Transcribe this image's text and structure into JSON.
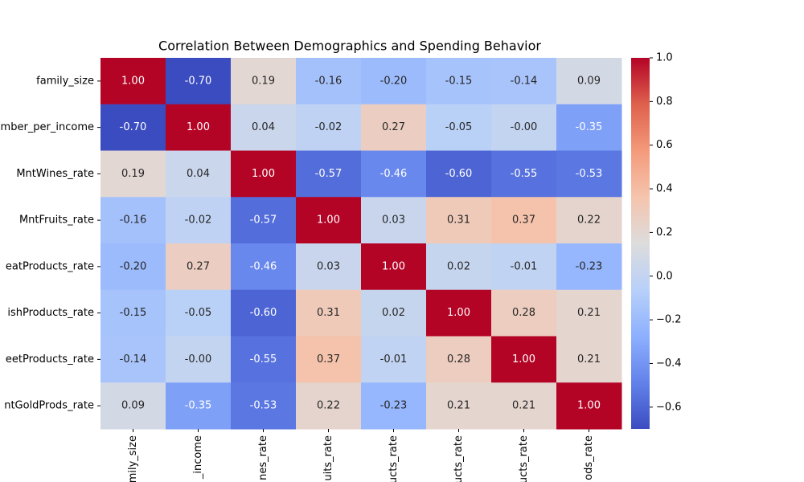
{
  "chart_data": {
    "type": "heatmap",
    "title": "Correlation Between Demographics and Spending Behavior",
    "colormap": "coolwarm",
    "x_labels": [
      "mily_size",
      "_income",
      "nes_rate",
      "uits_rate",
      "ucts_rate",
      "ucts_rate",
      "ucts_rate",
      "ods_rate"
    ],
    "y_labels": [
      "family_size",
      "mber_per_income",
      "MntWines_rate",
      "MntFruits_rate",
      "eatProducts_rate",
      "ishProducts_rate",
      "eetProducts_rate",
      "ntGoldProds_rate"
    ],
    "values": [
      [
        1.0,
        -0.7,
        0.19,
        -0.16,
        -0.2,
        -0.15,
        -0.14,
        0.09
      ],
      [
        -0.7,
        1.0,
        0.04,
        -0.02,
        0.27,
        -0.05,
        0,
        -0.35
      ],
      [
        0.19,
        0.04,
        1.0,
        -0.57,
        -0.46,
        -0.6,
        -0.55,
        -0.53
      ],
      [
        -0.16,
        -0.02,
        -0.57,
        1.0,
        0.03,
        0.31,
        0.37,
        0.22
      ],
      [
        -0.2,
        0.27,
        -0.46,
        0.03,
        1.0,
        0.02,
        -0.01,
        -0.23
      ],
      [
        -0.15,
        -0.05,
        -0.6,
        0.31,
        0.02,
        1.0,
        0.28,
        0.21
      ],
      [
        -0.14,
        0,
        -0.55,
        0.37,
        -0.01,
        0.28,
        1.0,
        0.21
      ],
      [
        0.09,
        -0.35,
        -0.53,
        0.22,
        -0.23,
        0.21,
        0.21,
        1.0
      ]
    ],
    "value_labels": [
      [
        "1.00",
        "-0.70",
        "0.19",
        "-0.16",
        "-0.20",
        "-0.15",
        "-0.14",
        "0.09"
      ],
      [
        "-0.70",
        "1.00",
        "0.04",
        "-0.02",
        "0.27",
        "-0.05",
        "-0.00",
        "-0.35"
      ],
      [
        "0.19",
        "0.04",
        "1.00",
        "-0.57",
        "-0.46",
        "-0.60",
        "-0.55",
        "-0.53"
      ],
      [
        "-0.16",
        "-0.02",
        "-0.57",
        "1.00",
        "0.03",
        "0.31",
        "0.37",
        "0.22"
      ],
      [
        "-0.20",
        "0.27",
        "-0.46",
        "0.03",
        "1.00",
        "0.02",
        "-0.01",
        "-0.23"
      ],
      [
        "-0.15",
        "-0.05",
        "-0.60",
        "0.31",
        "0.02",
        "1.00",
        "0.28",
        "0.21"
      ],
      [
        "-0.14",
        "-0.00",
        "-0.55",
        "0.37",
        "-0.01",
        "0.28",
        "1.00",
        "0.21"
      ],
      [
        "0.09",
        "-0.35",
        "-0.53",
        "0.22",
        "-0.23",
        "0.21",
        "0.21",
        "1.00"
      ]
    ],
    "clim": [
      -0.7,
      1.0
    ],
    "cticks": [
      {
        "value": 1.0,
        "label": "1.0"
      },
      {
        "value": 0.8,
        "label": "0.8"
      },
      {
        "value": 0.6,
        "label": "0.6"
      },
      {
        "value": 0.4,
        "label": "0.4"
      },
      {
        "value": 0.2,
        "label": "0.2"
      },
      {
        "value": 0.0,
        "label": "0.0"
      },
      {
        "value": -0.2,
        "label": "−0.2"
      },
      {
        "value": -0.4,
        "label": "−0.4"
      },
      {
        "value": -0.6,
        "label": "−0.6"
      }
    ]
  }
}
